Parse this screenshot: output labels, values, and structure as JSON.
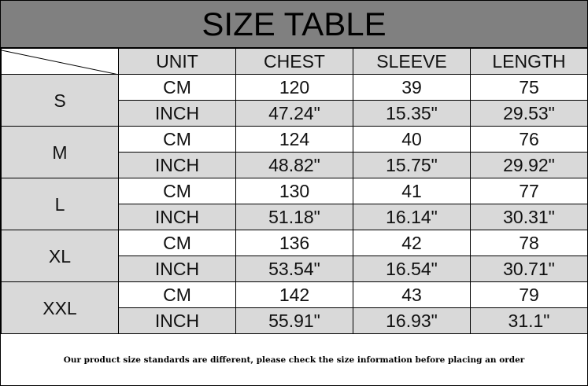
{
  "title": "SIZE TABLE",
  "columns": [
    "UNIT",
    "CHEST",
    "SLEEVE",
    "LENGTH"
  ],
  "rows": [
    {
      "size": "S",
      "cm": [
        "CM",
        "120",
        "39",
        "75"
      ],
      "inch": [
        "INCH",
        "47.24\"",
        "15.35\"",
        "29.53\""
      ]
    },
    {
      "size": "M",
      "cm": [
        "CM",
        "124",
        "40",
        "76"
      ],
      "inch": [
        "INCH",
        "48.82\"",
        "15.75\"",
        "29.92\""
      ]
    },
    {
      "size": "L",
      "cm": [
        "CM",
        "130",
        "41",
        "77"
      ],
      "inch": [
        "INCH",
        "51.18\"",
        "16.14\"",
        "30.31\""
      ]
    },
    {
      "size": "XL",
      "cm": [
        "CM",
        "136",
        "42",
        "78"
      ],
      "inch": [
        "INCH",
        "53.54\"",
        "16.54\"",
        "30.71\""
      ]
    },
    {
      "size": "XXL",
      "cm": [
        "CM",
        "142",
        "43",
        "79"
      ],
      "inch": [
        "INCH",
        "55.91\"",
        "16.93\"",
        "31.1\""
      ]
    }
  ],
  "footer": "Our product size standards are different, please check the size information before placing an order",
  "colors": {
    "title_bg": "#808080",
    "cell_gray": "#d9d9d9"
  }
}
